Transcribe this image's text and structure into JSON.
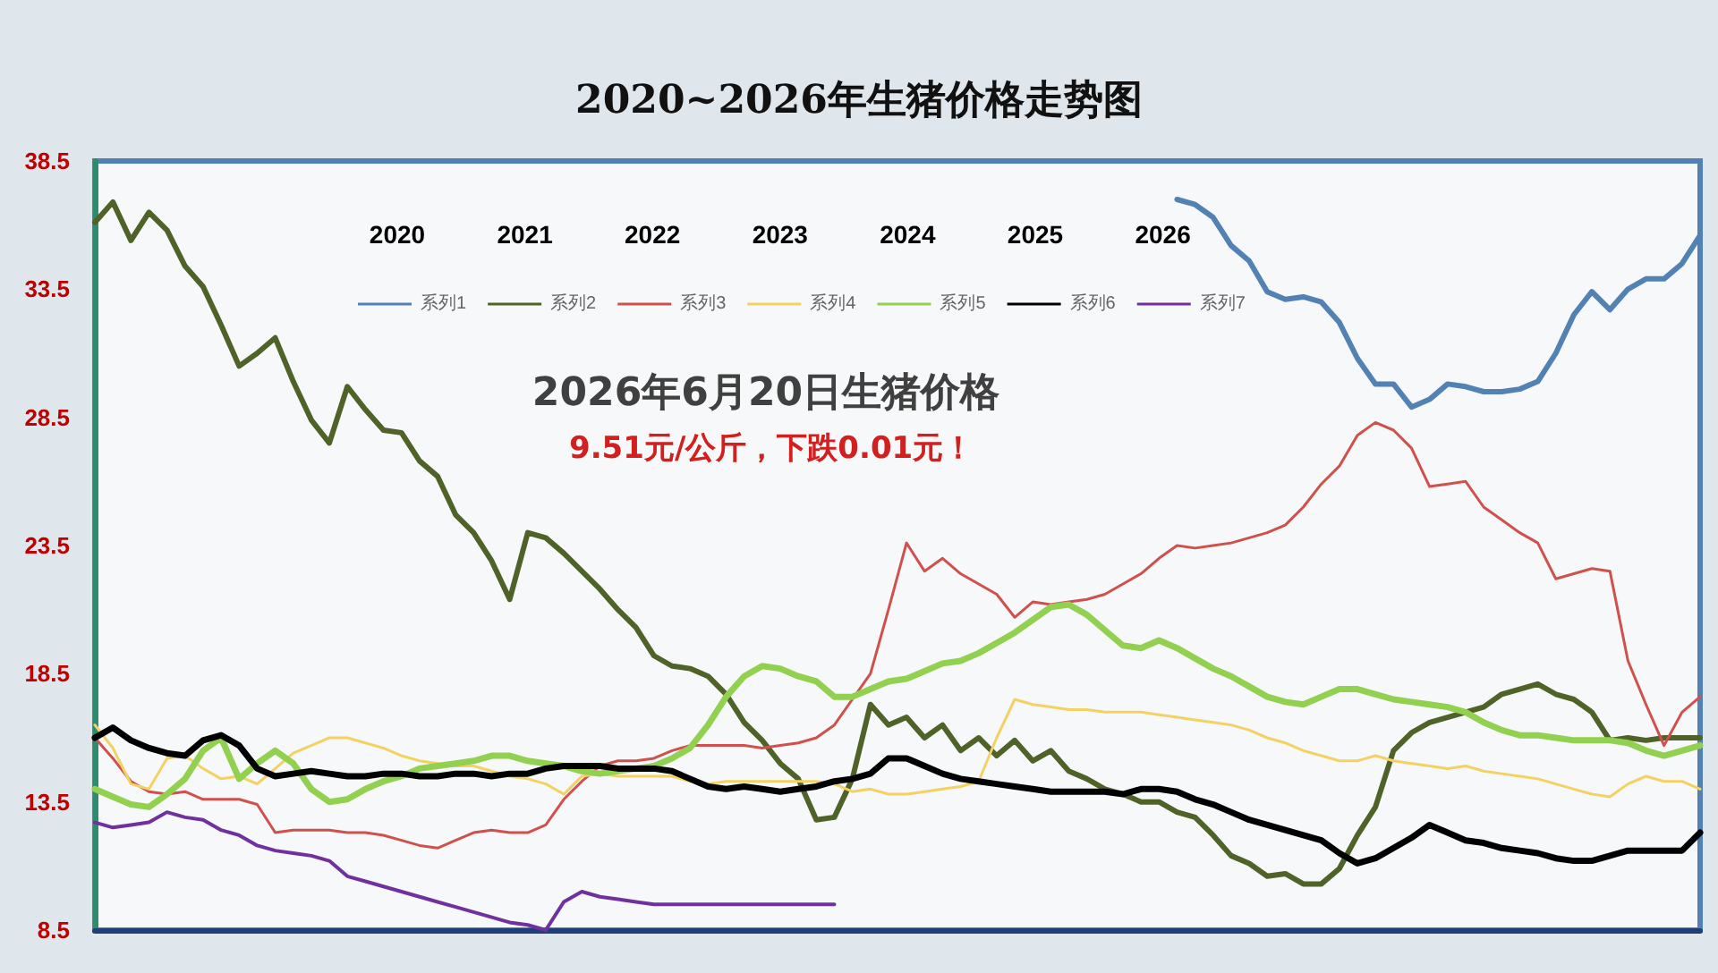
{
  "chart_data": {
    "type": "line",
    "title": "2020~2026年生猪价格走势图",
    "annotations": [
      "2020",
      "2021",
      "2022",
      "2023",
      "2024",
      "2025",
      "2026",
      "2026年6月20日生猪价格",
      "9.51元/公斤，下跌0.01元！"
    ],
    "categories": [
      null,
      null,
      null,
      null,
      null,
      null,
      null,
      null,
      null,
      null,
      null,
      null,
      null,
      null,
      null,
      null,
      null,
      null,
      null,
      null,
      null,
      null,
      null,
      null,
      null,
      null,
      null,
      null,
      null,
      null,
      null,
      null,
      null,
      null,
      null,
      null,
      null,
      null,
      null,
      null,
      null,
      null,
      null,
      null,
      null,
      null,
      null,
      null,
      null,
      null,
      null,
      null,
      null,
      null,
      null,
      null,
      null,
      null,
      null,
      null,
      null,
      null,
      null,
      null,
      null,
      null,
      null,
      null,
      null,
      null,
      null,
      null,
      null,
      null,
      null,
      null,
      null,
      null,
      null,
      null,
      null,
      null,
      null,
      null,
      null,
      null,
      null,
      null,
      null,
      null
    ],
    "ylim": [
      8.5,
      38.5
    ],
    "yticks": [
      8.5,
      13.5,
      18.5,
      23.5,
      28.5,
      33.5,
      38.5
    ],
    "grid": false,
    "legend": "top",
    "marker": "none",
    "series": [
      {
        "name": "系列1",
        "color": "#5282b4",
        "values": [
          null,
          null,
          null,
          null,
          null,
          null,
          null,
          null,
          null,
          null,
          null,
          null,
          null,
          null,
          null,
          null,
          null,
          null,
          null,
          null,
          null,
          null,
          null,
          null,
          null,
          null,
          null,
          null,
          null,
          null,
          null,
          null,
          null,
          null,
          null,
          null,
          null,
          null,
          null,
          null,
          null,
          null,
          null,
          null,
          null,
          null,
          null,
          null,
          null,
          null,
          null,
          null,
          null,
          null,
          null,
          null,
          null,
          null,
          null,
          null,
          37.0,
          36.8,
          36.3,
          35.2,
          34.6,
          33.4,
          33.1,
          33.2,
          33.0,
          32.2,
          30.8,
          29.8,
          29.8,
          28.9,
          29.2,
          29.8,
          29.7,
          29.5,
          29.5,
          29.6,
          29.9,
          31.0,
          32.5,
          33.4,
          32.7,
          33.5,
          33.9,
          33.9,
          34.5,
          35.6
        ]
      },
      {
        "name": "系列2",
        "color": "#4f6228",
        "values": [
          36.1,
          36.9,
          35.4,
          36.5,
          35.8,
          34.4,
          33.6,
          32.1,
          30.5,
          31.0,
          31.6,
          29.9,
          28.4,
          27.5,
          29.7,
          28.8,
          28.0,
          27.9,
          26.8,
          26.2,
          24.7,
          24.0,
          22.9,
          21.4,
          24.0,
          23.8,
          23.2,
          22.5,
          21.8,
          21.0,
          20.3,
          19.2,
          18.8,
          18.7,
          18.4,
          17.7,
          16.6,
          15.9,
          15.0,
          14.4,
          12.8,
          12.9,
          14.4,
          17.3,
          16.5,
          16.8,
          16.0,
          16.5,
          15.5,
          16.0,
          15.3,
          15.9,
          15.1,
          15.5,
          14.7,
          14.4,
          14.0,
          13.8,
          13.5,
          13.5,
          13.1,
          12.9,
          12.2,
          11.4,
          11.1,
          10.6,
          10.7,
          10.3,
          10.3,
          10.9,
          12.2,
          13.3,
          15.5,
          16.2,
          16.6,
          16.8,
          17.0,
          17.2,
          17.7,
          17.9,
          18.1,
          17.7,
          17.5,
          17.0,
          15.9,
          16.0,
          15.9,
          16.0,
          16.0,
          16.0
        ]
      },
      {
        "name": "系列3",
        "color": "#d0504d",
        "values": [
          16.0,
          15.2,
          14.3,
          13.9,
          13.8,
          13.9,
          13.6,
          13.6,
          13.6,
          13.4,
          12.3,
          12.4,
          12.4,
          12.4,
          12.3,
          12.3,
          12.2,
          12.0,
          11.8,
          11.7,
          12.0,
          12.3,
          12.4,
          12.3,
          12.3,
          12.6,
          13.6,
          14.3,
          14.9,
          15.1,
          15.1,
          15.2,
          15.5,
          15.7,
          15.7,
          15.7,
          15.7,
          15.6,
          15.7,
          15.8,
          16.0,
          16.5,
          17.5,
          18.5,
          21.0,
          23.6,
          22.5,
          23.0,
          22.4,
          22.0,
          21.6,
          20.7,
          21.3,
          21.2,
          21.3,
          21.4,
          21.6,
          22.0,
          22.4,
          23.0,
          23.5,
          23.4,
          23.5,
          23.6,
          23.8,
          24.0,
          24.3,
          25.0,
          25.9,
          26.6,
          27.8,
          28.3,
          28.0,
          27.3,
          25.8,
          25.9,
          26.0,
          25.0,
          24.5,
          24.0,
          23.6,
          22.2,
          22.4,
          22.6,
          22.5,
          19.0,
          17.3,
          15.7,
          17.0,
          17.6
        ]
      },
      {
        "name": "系列4",
        "color": "#f3d263",
        "values": [
          16.5,
          15.6,
          14.2,
          14.0,
          15.2,
          15.3,
          14.8,
          14.4,
          14.5,
          14.2,
          14.8,
          15.4,
          15.7,
          16.0,
          16.0,
          15.8,
          15.6,
          15.3,
          15.1,
          15.0,
          14.9,
          14.9,
          14.7,
          14.5,
          14.4,
          14.2,
          13.8,
          14.5,
          14.6,
          14.5,
          14.5,
          14.5,
          14.5,
          14.3,
          14.2,
          14.3,
          14.3,
          14.3,
          14.3,
          14.3,
          14.3,
          14.2,
          13.9,
          14.0,
          13.8,
          13.8,
          13.9,
          14.0,
          14.1,
          14.3,
          16.0,
          17.5,
          17.3,
          17.2,
          17.1,
          17.1,
          17.0,
          17.0,
          17.0,
          16.9,
          16.8,
          16.7,
          16.6,
          16.5,
          16.3,
          16.0,
          15.8,
          15.5,
          15.3,
          15.1,
          15.1,
          15.3,
          15.1,
          15.0,
          14.9,
          14.8,
          14.9,
          14.7,
          14.6,
          14.5,
          14.4,
          14.2,
          14.0,
          13.8,
          13.7,
          14.2,
          14.5,
          14.3,
          14.3,
          14.0
        ]
      },
      {
        "name": "系列5",
        "color": "#92d050",
        "values": [
          14.0,
          13.7,
          13.4,
          13.3,
          13.8,
          14.4,
          15.5,
          16.0,
          14.4,
          15.0,
          15.5,
          15.0,
          14.0,
          13.5,
          13.6,
          14.0,
          14.3,
          14.5,
          14.8,
          14.9,
          15.0,
          15.1,
          15.3,
          15.3,
          15.1,
          15.0,
          14.9,
          14.7,
          14.6,
          14.7,
          14.8,
          14.9,
          15.2,
          15.6,
          16.5,
          17.6,
          18.4,
          18.8,
          18.7,
          18.4,
          18.2,
          17.6,
          17.6,
          17.9,
          18.2,
          18.3,
          18.6,
          18.9,
          19.0,
          19.3,
          19.7,
          20.1,
          20.6,
          21.1,
          21.2,
          20.8,
          20.2,
          19.6,
          19.5,
          19.8,
          19.5,
          19.1,
          18.7,
          18.4,
          18.0,
          17.6,
          17.4,
          17.3,
          17.6,
          17.9,
          17.9,
          17.7,
          17.5,
          17.4,
          17.3,
          17.2,
          17.0,
          16.6,
          16.3,
          16.1,
          16.1,
          16.0,
          15.9,
          15.9,
          15.9,
          15.8,
          15.5,
          15.3,
          15.5,
          15.7
        ]
      },
      {
        "name": "系列6",
        "color": "#000000",
        "values": [
          16.0,
          16.4,
          15.9,
          15.6,
          15.4,
          15.3,
          15.9,
          16.1,
          15.7,
          14.8,
          14.5,
          14.6,
          14.7,
          14.6,
          14.5,
          14.5,
          14.6,
          14.6,
          14.5,
          14.5,
          14.6,
          14.6,
          14.5,
          14.6,
          14.6,
          14.8,
          14.9,
          14.9,
          14.9,
          14.8,
          14.8,
          14.8,
          14.7,
          14.4,
          14.1,
          14.0,
          14.1,
          14.0,
          13.9,
          14.0,
          14.1,
          14.3,
          14.4,
          14.6,
          15.2,
          15.2,
          14.9,
          14.6,
          14.4,
          14.3,
          14.2,
          14.1,
          14.0,
          13.9,
          13.9,
          13.9,
          13.9,
          13.8,
          14.0,
          14.0,
          13.9,
          13.6,
          13.4,
          13.1,
          12.8,
          12.6,
          12.4,
          12.2,
          12.0,
          11.5,
          11.1,
          11.3,
          11.7,
          12.1,
          12.6,
          12.3,
          12.0,
          11.9,
          11.7,
          11.6,
          11.5,
          11.3,
          11.2,
          11.2,
          11.4,
          11.6,
          11.6,
          11.6,
          11.6,
          12.3
        ]
      },
      {
        "name": "系列7",
        "color": "#7030a0",
        "values": [
          12.7,
          12.5,
          12.6,
          12.7,
          13.1,
          12.9,
          12.8,
          12.4,
          12.2,
          11.8,
          11.6,
          11.5,
          11.4,
          11.2,
          10.6,
          10.4,
          10.2,
          10.0,
          9.8,
          9.6,
          9.4,
          9.2,
          9.0,
          8.8,
          8.7,
          8.5,
          9.6,
          10.0,
          9.8,
          9.7,
          9.6,
          9.5,
          9.5,
          9.5,
          9.5,
          9.5,
          9.5,
          9.5,
          9.5,
          9.5,
          9.5,
          9.5,
          null,
          null,
          null,
          null,
          null,
          null,
          null,
          null,
          null,
          null,
          null,
          null,
          null,
          null,
          null,
          null,
          null,
          null,
          null,
          null,
          null,
          null,
          null,
          null,
          null,
          null,
          null,
          null,
          null,
          null,
          null,
          null,
          null,
          null,
          null,
          null,
          null,
          null,
          null,
          null,
          null,
          null,
          null,
          null,
          null,
          null,
          null,
          null
        ]
      }
    ]
  }
}
